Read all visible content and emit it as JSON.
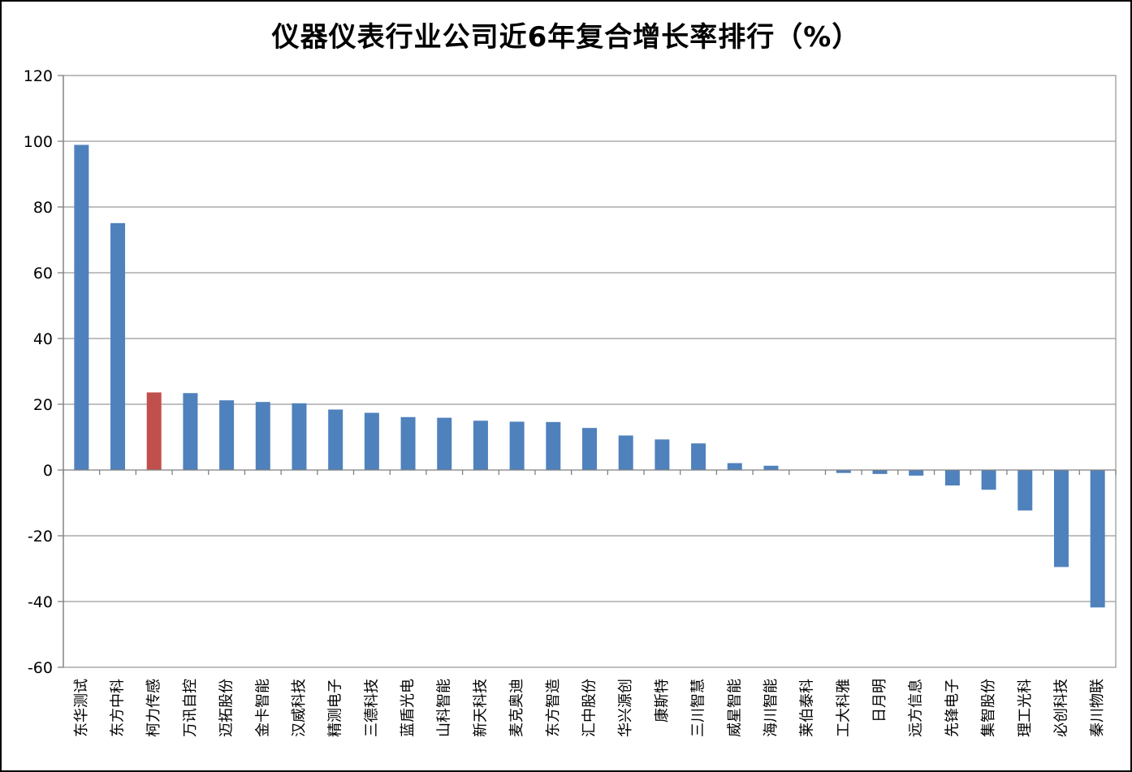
{
  "title": "仪器仪表行业公司近6年复合增长率排行（%）",
  "colors": {
    "bar": "#4F81BD",
    "highlight": "#C0504D",
    "gridline": "#9b9b9b",
    "axis": "#808080",
    "text": "#000000",
    "background": "#ffffff",
    "frame_border": "#000000"
  },
  "chart_data": {
    "type": "bar",
    "title": "仪器仪表行业公司近6年复合增长率排行（%）",
    "xlabel": "",
    "ylabel": "",
    "ylim": [
      -60,
      120
    ],
    "ytick_step": 20,
    "ytick_labels": [
      "120",
      "100",
      "80",
      "60",
      "40",
      "20",
      "0",
      "-20",
      "-40",
      "-60"
    ],
    "grid": true,
    "legend_position": "none",
    "highlight_index": 2,
    "categories": [
      "东华测试",
      "东方中科",
      "柯力传感",
      "万讯自控",
      "迈拓股份",
      "金卡智能",
      "汉威科技",
      "精测电子",
      "三德科技",
      "蓝盾光电",
      "山科智能",
      "新天科技",
      "麦克奥迪",
      "东方智造",
      "汇中股份",
      "华兴源创",
      "康斯特",
      "三川智慧",
      "威星智能",
      "海川智能",
      "莱伯泰科",
      "工大科雅",
      "日月明",
      "远方信息",
      "先锋电子",
      "集智股份",
      "理工光科",
      "必创科技",
      "秦川物联"
    ],
    "values": [
      98.9,
      75.1,
      23.6,
      23.4,
      21.2,
      20.7,
      20.3,
      18.4,
      17.4,
      16.1,
      15.9,
      15.0,
      14.7,
      14.6,
      12.8,
      10.5,
      9.3,
      8.1,
      2.1,
      1.3,
      0,
      -0.9,
      -1.2,
      -1.7,
      -4.7,
      -6.0,
      -12.3,
      -29.5,
      -41.8
    ]
  }
}
